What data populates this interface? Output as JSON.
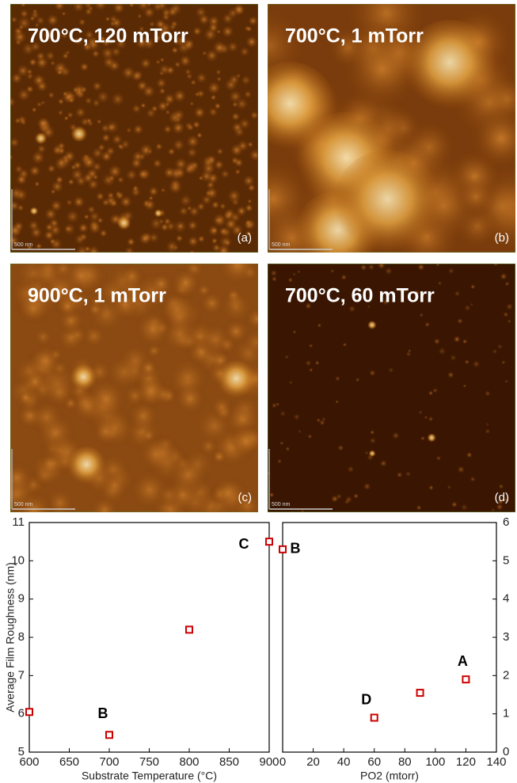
{
  "panels": [
    {
      "label": "700°C, 120 mTorr",
      "tag": "(a)",
      "scale_bar": "500 nm"
    },
    {
      "label": "700°C, 1 mTorr",
      "tag": "(b)",
      "scale_bar": "500 nm"
    },
    {
      "label": "900°C, 1 mTorr",
      "tag": "(c)",
      "scale_bar": "500 nm"
    },
    {
      "label": "700°C, 60 mTorr",
      "tag": "(d)",
      "scale_bar": "500 nm"
    }
  ],
  "chart_data": [
    {
      "type": "scatter",
      "y_label": "Average Film Roughness (nm)",
      "x_label": "Substrate Temperature (°C)",
      "x": [
        600,
        700,
        800,
        900
      ],
      "values": [
        6.05,
        5.45,
        8.2,
        10.5
      ],
      "color": "#cc0000",
      "xlim": [
        600,
        900
      ],
      "xticks": [
        600,
        650,
        700,
        750,
        800,
        850,
        900
      ],
      "ylim": [
        5,
        11
      ],
      "yticks": [
        5,
        6,
        7,
        8,
        9,
        10,
        11
      ],
      "annotations": [
        "B",
        "C"
      ]
    },
    {
      "type": "scatter",
      "x_label": "PO2 (mtorr)",
      "x": [
        0,
        60,
        90,
        120
      ],
      "values": [
        5.3,
        0.9,
        1.55,
        1.9
      ],
      "color": "#cc0000",
      "axis": "y2",
      "xlim": [
        0,
        140
      ],
      "xticks": [
        0,
        20,
        40,
        60,
        80,
        100,
        120,
        140
      ],
      "y2lim": [
        0,
        6
      ],
      "y2ticks": [
        0,
        1,
        2,
        3,
        4,
        5,
        6
      ],
      "annotations": [
        "B",
        "D",
        "A"
      ]
    }
  ]
}
